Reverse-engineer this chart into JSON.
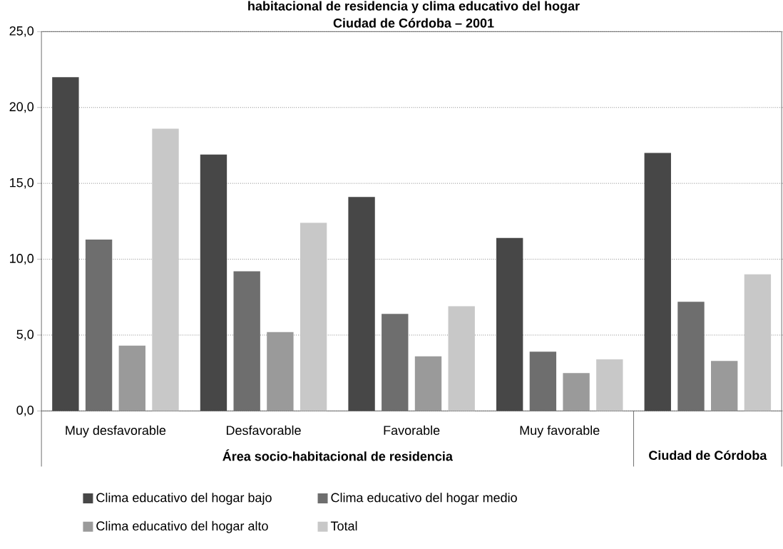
{
  "chart_data": {
    "type": "bar",
    "title": "habitacional de residencia y clima educativo del hogar",
    "subtitle": "Ciudad de Córdoba – 2001",
    "categories": [
      "Muy desfavorable",
      "Desfavorable",
      "Favorable",
      "Muy favorable",
      null
    ],
    "series": [
      {
        "name": "Clima educativo del hogar bajo",
        "color": "#474747",
        "values": [
          22.0,
          16.9,
          14.1,
          11.4,
          17.0
        ]
      },
      {
        "name": "Clima educativo del hogar medio",
        "color": "#6e6e6e",
        "values": [
          11.3,
          9.2,
          6.4,
          3.9,
          7.2
        ]
      },
      {
        "name": "Clima educativo del hogar alto",
        "color": "#9a9a9a",
        "values": [
          4.3,
          5.2,
          3.6,
          2.5,
          3.3
        ]
      },
      {
        "name": "Total",
        "color": "#c8c8c8",
        "values": [
          18.6,
          12.4,
          6.9,
          3.4,
          9.0
        ]
      }
    ],
    "annotations": [
      "Área socio-habitacional de residencia",
      "Ciudad de Córdoba"
    ],
    "ylim": [
      0,
      25
    ],
    "yticks": [
      {
        "value": 0,
        "label": "0,0"
      },
      {
        "value": 5,
        "label": "5,0"
      },
      {
        "value": 10,
        "label": "10,0"
      },
      {
        "value": 15,
        "label": "15,0"
      },
      {
        "value": 20,
        "label": "20,0"
      },
      {
        "value": 25,
        "label": "25,0"
      }
    ],
    "grid": "y",
    "legend": "bottom"
  }
}
